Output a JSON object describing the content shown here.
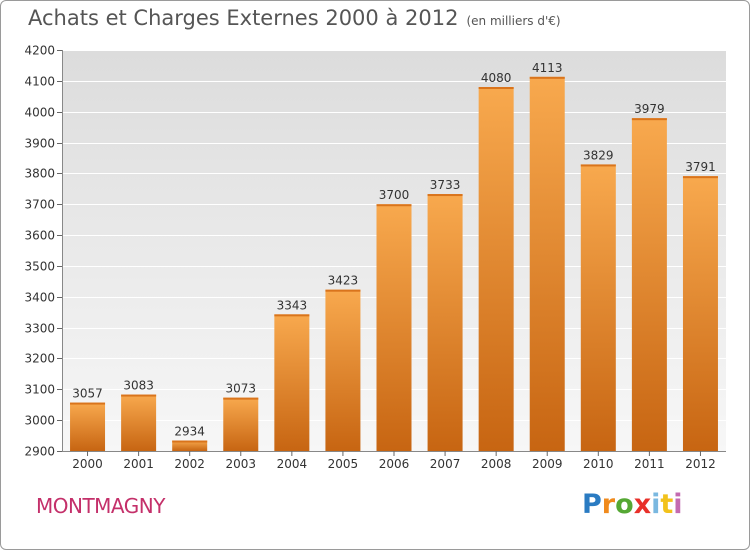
{
  "header": {
    "title": "Achats et Charges Externes 2000 à 2012",
    "unit": "(en milliers d'€)"
  },
  "footer": {
    "city": "MONTMAGNY",
    "logo": [
      "P",
      "r",
      "o",
      "x",
      "i",
      "t",
      "i"
    ],
    "logo_colors": [
      "#2a7bc2",
      "#f08a1c",
      "#55a834",
      "#e8302a",
      "#7ab8e0",
      "#f2c21b",
      "#c46ab0"
    ]
  },
  "colors": {
    "bar_top": "#f8a94e",
    "bar_bottom": "#c76512",
    "grid": "#ffffff",
    "axis_text": "#333333"
  },
  "chart_data": {
    "type": "bar",
    "title": "Achats et Charges Externes 2000 à 2012",
    "categories": [
      "2000",
      "2001",
      "2002",
      "2003",
      "2004",
      "2005",
      "2006",
      "2007",
      "2008",
      "2009",
      "2010",
      "2011",
      "2012"
    ],
    "values": [
      3057,
      3083,
      2934,
      3073,
      3343,
      3423,
      3700,
      3733,
      4080,
      4113,
      3829,
      3979,
      3791
    ],
    "ylim": [
      2900,
      4200
    ],
    "yticks": [
      2900,
      3000,
      3100,
      3200,
      3300,
      3400,
      3500,
      3600,
      3700,
      3800,
      3900,
      4000,
      4100,
      4200
    ],
    "grid": true,
    "xlabel": "",
    "ylabel": ""
  }
}
